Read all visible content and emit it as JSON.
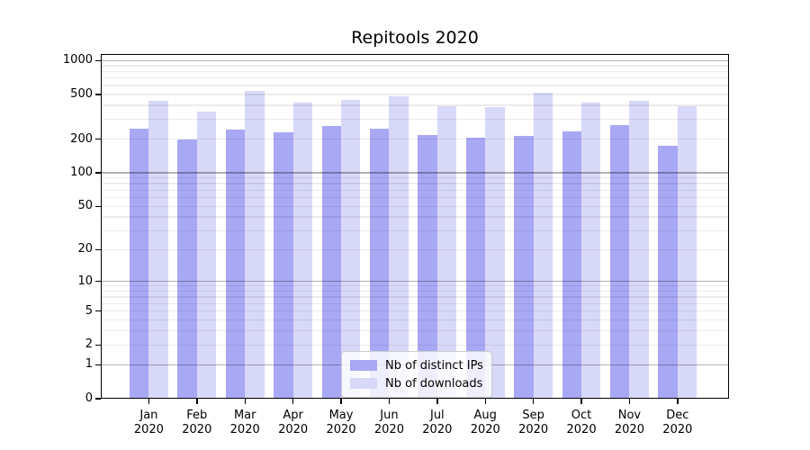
{
  "chart_data": {
    "type": "bar",
    "title": "Repitools 2020",
    "categories": [
      "Jan 2020",
      "Feb 2020",
      "Mar 2020",
      "Apr 2020",
      "May 2020",
      "Jun 2020",
      "Jul 2020",
      "Aug 2020",
      "Sep 2020",
      "Oct 2020",
      "Nov 2020",
      "Dec 2020"
    ],
    "series": [
      {
        "name": "Nb of distinct IPs",
        "color": "#a8a8f5",
        "values": [
          250,
          200,
          245,
          230,
          260,
          250,
          218,
          207,
          213,
          233,
          268,
          175
        ]
      },
      {
        "name": "Nb of downloads",
        "color": "#d8d8f8",
        "values": [
          440,
          350,
          540,
          420,
          450,
          485,
          390,
          385,
          515,
          420,
          440,
          390
        ]
      }
    ],
    "xlabel": "",
    "ylabel": "",
    "yscale": "log(1+x)",
    "ylim": [
      0,
      1145
    ],
    "y_ticks": [
      1000,
      500,
      200,
      100,
      50,
      20,
      10,
      5,
      2,
      1,
      0
    ],
    "grid": {
      "major": [
        1,
        10,
        100,
        1000
      ],
      "minor": [
        2,
        3,
        4,
        5,
        6,
        7,
        8,
        9,
        20,
        30,
        40,
        50,
        60,
        70,
        80,
        90,
        200,
        300,
        400,
        500,
        600,
        700,
        800,
        900
      ]
    },
    "legend_position": "inside-bottom-center",
    "bar_group_width": 0.8,
    "grid_on": true
  },
  "colors": {
    "distinct_ips_bar": "#a8a8f5",
    "downloads_bar": "#d8d8f8",
    "major_gridline": "rgba(0,0,0,0.30)",
    "minor_gridline": "rgba(0,0,0,0.075)",
    "axis": "#000000",
    "legend_border": "#cccccc"
  }
}
